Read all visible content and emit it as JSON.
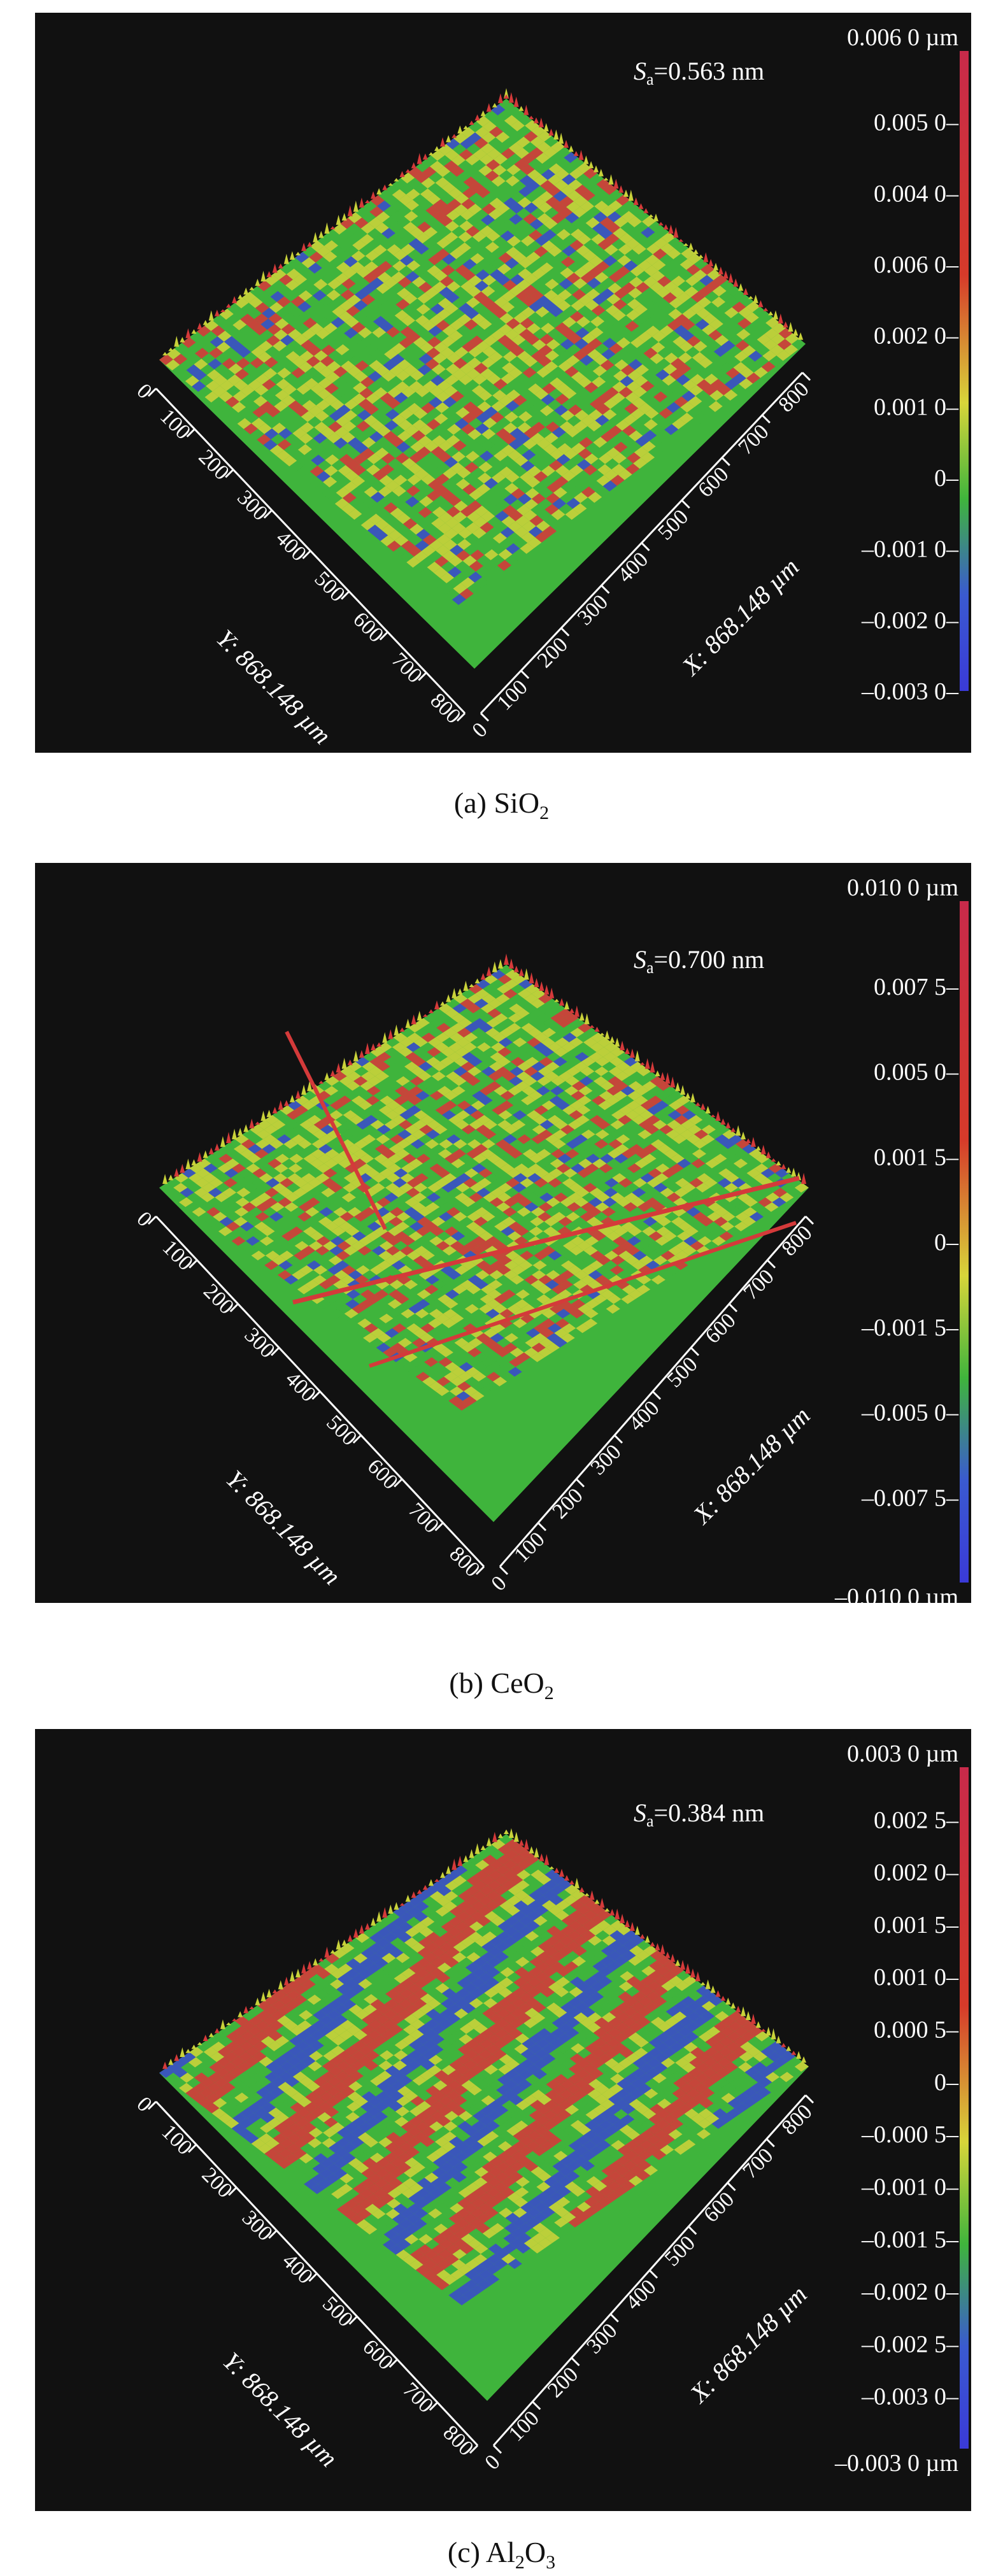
{
  "figure": {
    "panels": [
      {
        "id": "a",
        "roughness_symbol": "S",
        "roughness_subscript": "a",
        "roughness_value": "=0.563 nm",
        "caption_prefix": "(a) SiO",
        "caption_sub": "2",
        "caption_suffix": "",
        "scale_ticks": [
          "0.006 0 µm",
          "0.005 0–",
          "0.004 0–",
          "0.006 0–",
          "0.002 0–",
          "0.001 0–",
          "0–",
          "–0.001 0–",
          "–0.002 0–",
          "–0.003 0–"
        ],
        "features": "uniform"
      },
      {
        "id": "b",
        "roughness_symbol": "S",
        "roughness_subscript": "a",
        "roughness_value": "=0.700 nm",
        "caption_prefix": "(b) CeO",
        "caption_sub": "2",
        "caption_suffix": "",
        "scale_ticks": [
          "0.010 0 µm",
          "0.007 5–",
          "0.005 0–",
          "0.001 5–",
          "0–",
          "–0.001 5–",
          "–0.005 0–",
          "–0.007 5–",
          "–0.010 0 µm"
        ],
        "features": "scratches"
      },
      {
        "id": "c",
        "roughness_symbol": "S",
        "roughness_subscript": "a",
        "roughness_value": "=0.384 nm",
        "caption_prefix": "(c) Al",
        "caption_sub": "2",
        "caption_suffix": "O",
        "caption_sub2": "3",
        "scale_ticks": [
          "0.003 0 µm",
          "0.002 5–",
          "0.002 0–",
          "0.001 5–",
          "0.001 0–",
          "0.000 5–",
          "0–",
          "–0.000 5–",
          "–0.001 0–",
          "–0.001 5–",
          "–0.002 0–",
          "–0.002 5–",
          "–0.003 0–",
          "–0.003 0 µm"
        ],
        "features": "streaks"
      }
    ],
    "axes": {
      "y_label": "Y: 868.148 µm",
      "x_label": "X: 868.148 µm",
      "y_ticks": [
        "0",
        "100",
        "200",
        "300",
        "400",
        "500",
        "600",
        "700",
        "800"
      ],
      "x_ticks": [
        "0",
        "100",
        "200",
        "300",
        "400",
        "500",
        "600",
        "700",
        "800"
      ]
    },
    "colors": {
      "background": "#111111",
      "surface_green": "#3fb43c",
      "surface_yellow": "#c9d23a",
      "surface_red": "#d43a3a",
      "surface_blue": "#3a4cc8",
      "text": "#ffffff"
    }
  }
}
